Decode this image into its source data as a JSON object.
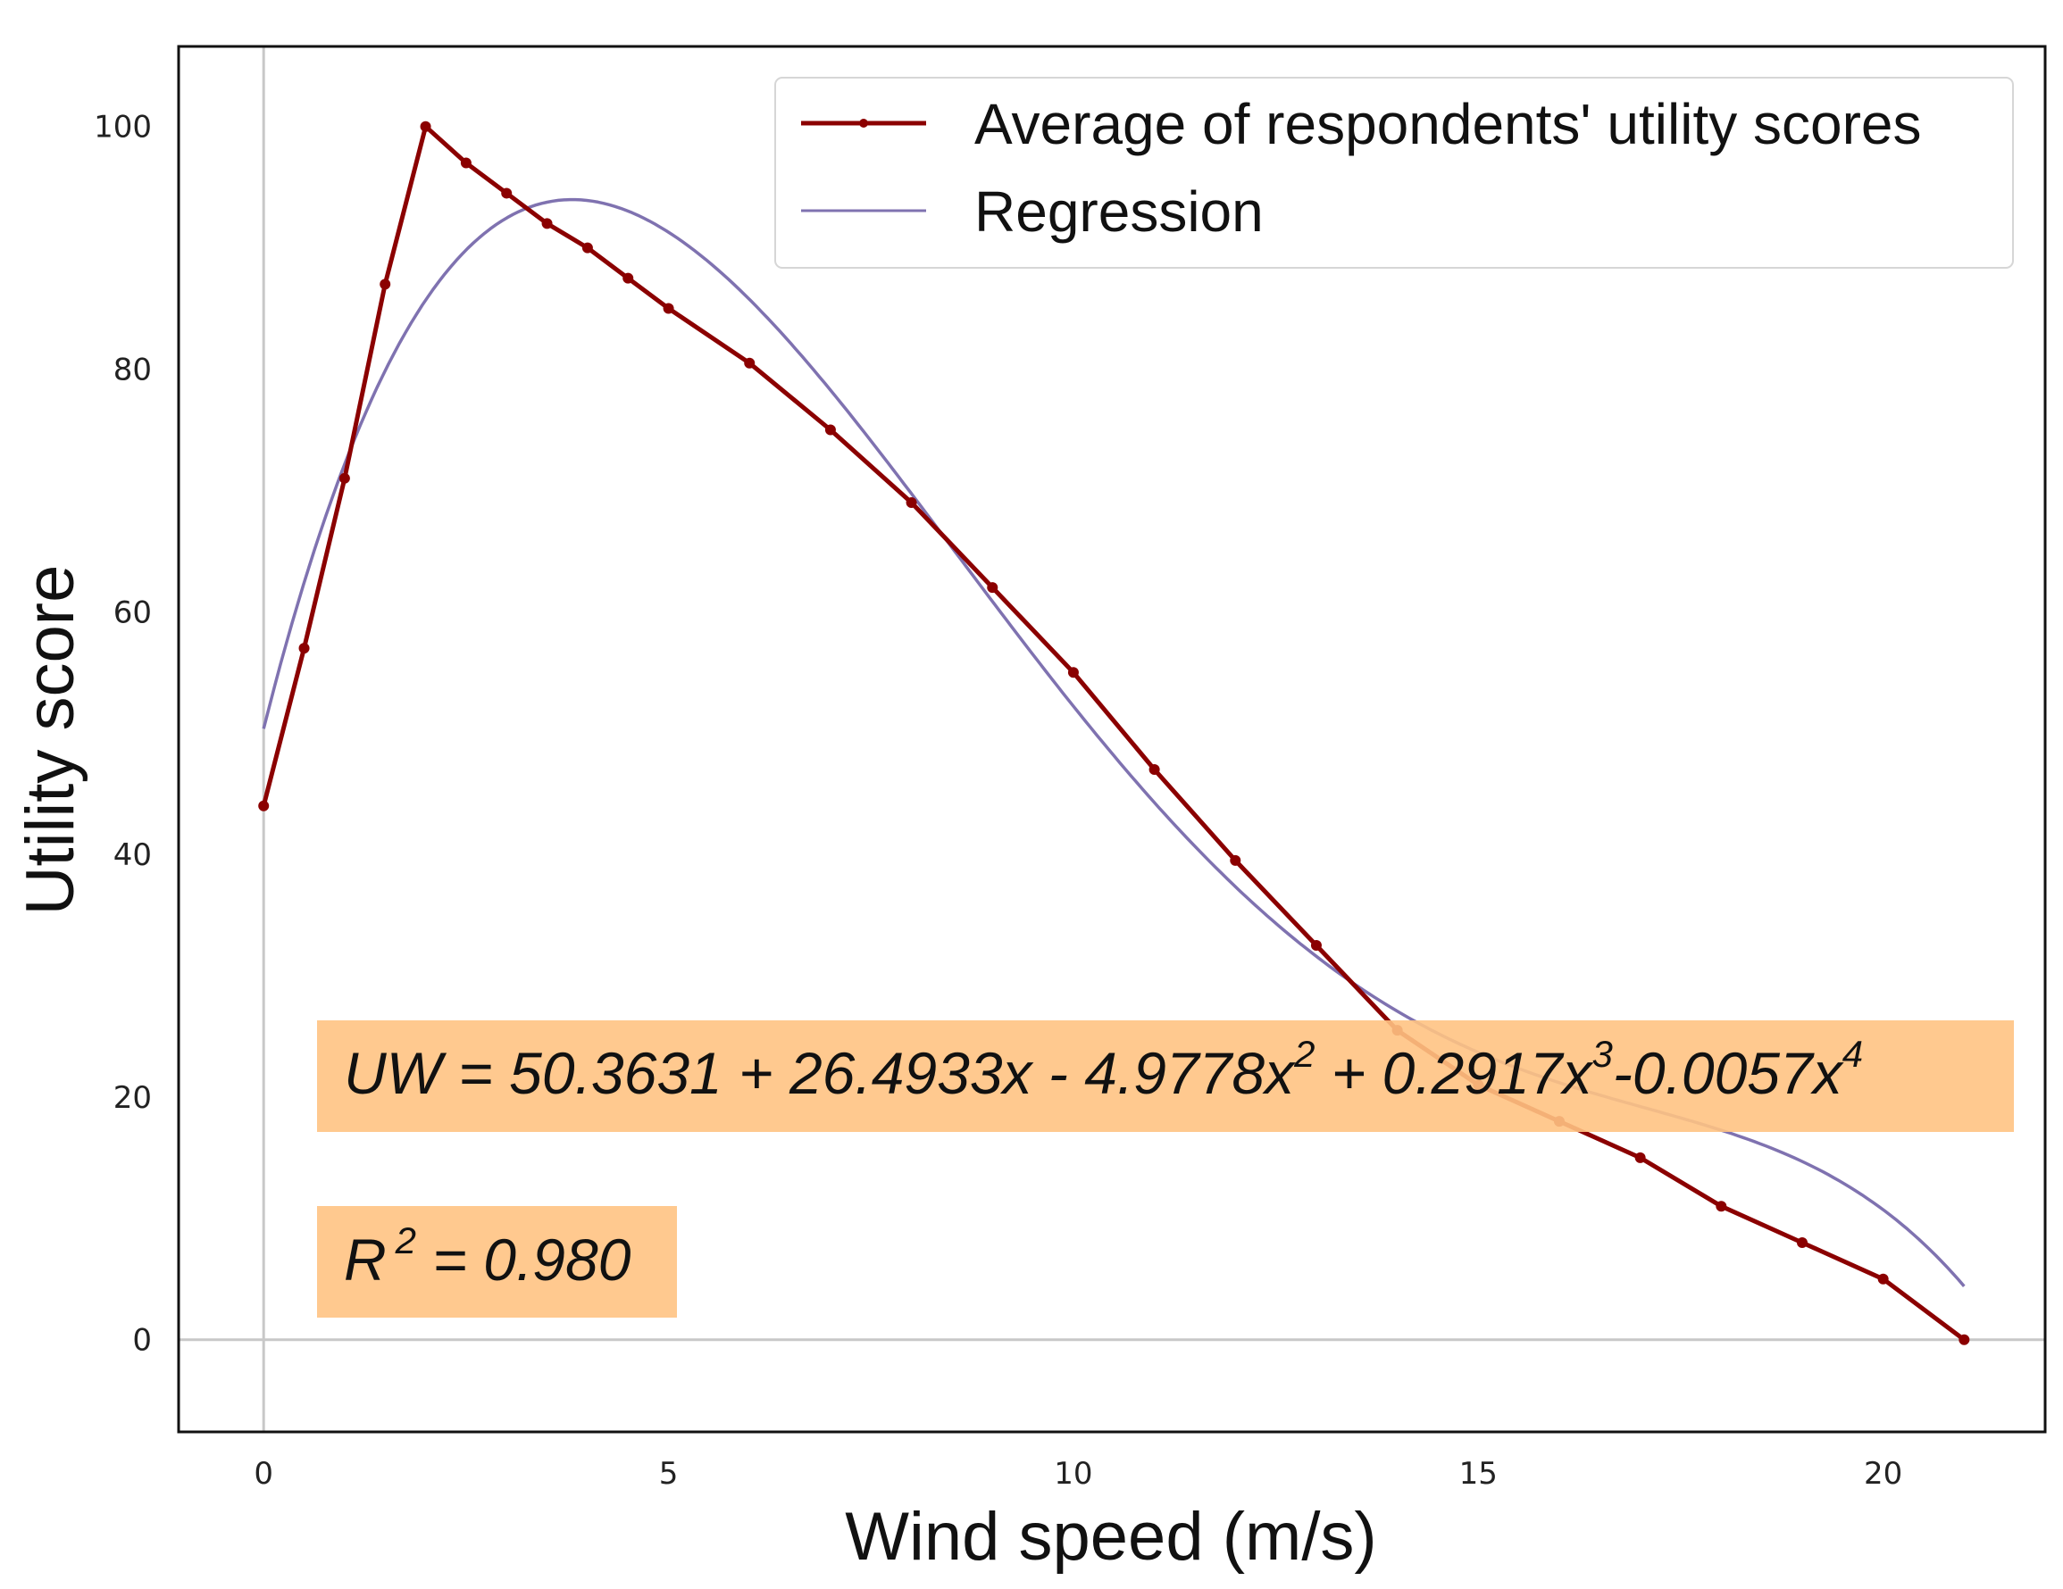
{
  "chart_data": {
    "type": "line",
    "title": "",
    "xlabel": "Wind speed (m/s)",
    "ylabel": "Utility score",
    "xlim": [
      -1.05,
      22
    ],
    "ylim": [
      -7.6,
      106.6
    ],
    "xticks": [
      0,
      5,
      10,
      15,
      20
    ],
    "yticks": [
      0,
      20,
      40,
      60,
      80,
      100
    ],
    "grid": false,
    "legend_position": "top-right",
    "colors": {
      "average": "#8b0000",
      "regression": "#7f72b0",
      "annotation_bg": "#ffc383",
      "zero_line": "#c8c8c8"
    },
    "series": [
      {
        "name": "Average of respondents' utility scores",
        "x": [
          0,
          0.5,
          1,
          1.5,
          2,
          2.5,
          3,
          3.5,
          4,
          4.5,
          5,
          6,
          7,
          8,
          9,
          10,
          11,
          12,
          13,
          14,
          15,
          16,
          17,
          18,
          19,
          20,
          21
        ],
        "values": [
          44,
          57,
          71,
          87,
          100,
          97,
          94.5,
          92,
          90,
          87.5,
          85,
          80.5,
          75,
          69,
          62,
          55,
          47,
          39.5,
          32.5,
          25.5,
          21,
          18,
          15,
          11,
          8,
          5,
          0
        ]
      },
      {
        "name": "Regression",
        "equation": {
          "intercept": 50.3631,
          "coefficients": [
            26.4933,
            -4.9778,
            0.2917,
            -0.0057
          ]
        },
        "x_range": [
          0,
          21
        ]
      }
    ],
    "annotations": {
      "equation": {
        "prefix": "UW = 50.3631 + 26.4933x -  4.9778x",
        "sup1": "2",
        "mid1": " + 0.2917x",
        "sup2": "3",
        "mid2": "-0.0057x",
        "sup3": "4"
      },
      "r_squared": {
        "prefix": "R",
        "sup": "2",
        "suffix": " = 0.980"
      }
    }
  }
}
